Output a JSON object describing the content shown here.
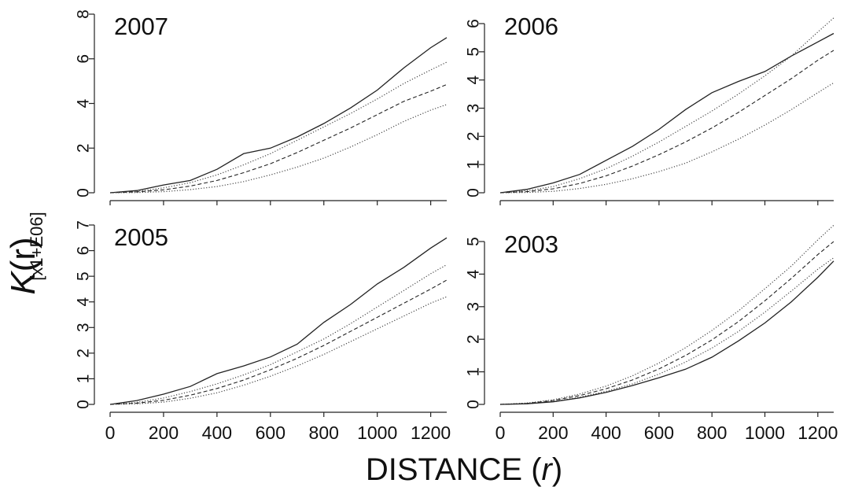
{
  "figure": {
    "ylabel_symbol": "K",
    "ylabel_arg": "(r)",
    "ylabel_unit": "[x1+E06]",
    "xlabel_text": "DISTANCE (",
    "xlabel_var": "r",
    "xlabel_close": ")"
  },
  "chart_data": [
    {
      "type": "line",
      "title": "2007",
      "xlim": [
        0,
        1260
      ],
      "ylim": [
        0,
        8
      ],
      "xticks": [
        0,
        200,
        400,
        600,
        800,
        1000,
        1200
      ],
      "yticks": [
        0,
        2,
        4,
        6,
        8
      ],
      "xtick_labels": [
        "0",
        "200",
        "400",
        "600",
        "800",
        "1000",
        "1200"
      ],
      "ytick_labels": [
        "0",
        "2",
        "4",
        "6",
        "8"
      ],
      "x": [
        0,
        100,
        200,
        300,
        400,
        500,
        600,
        700,
        800,
        900,
        1000,
        1100,
        1200,
        1260
      ],
      "series": [
        {
          "style": "solid",
          "values": [
            0,
            0.1,
            0.35,
            0.55,
            1.05,
            1.75,
            2.0,
            2.5,
            3.1,
            3.8,
            4.6,
            5.6,
            6.5,
            6.95
          ]
        },
        {
          "style": "dotted",
          "values": [
            0,
            0.06,
            0.22,
            0.45,
            0.8,
            1.25,
            1.75,
            2.35,
            2.95,
            3.55,
            4.2,
            4.9,
            5.5,
            5.85
          ]
        },
        {
          "style": "dashed",
          "values": [
            0,
            0.04,
            0.13,
            0.3,
            0.55,
            0.9,
            1.3,
            1.8,
            2.35,
            2.9,
            3.5,
            4.1,
            4.55,
            4.85
          ]
        },
        {
          "style": "dotted",
          "values": [
            0,
            0.01,
            0.05,
            0.14,
            0.28,
            0.5,
            0.8,
            1.15,
            1.55,
            2.05,
            2.6,
            3.2,
            3.7,
            3.95
          ]
        }
      ]
    },
    {
      "type": "line",
      "title": "2006",
      "xlim": [
        0,
        1260
      ],
      "ylim": [
        0,
        6
      ],
      "xticks": [
        0,
        200,
        400,
        600,
        800,
        1000,
        1200
      ],
      "yticks": [
        0,
        1,
        2,
        3,
        4,
        5,
        6
      ],
      "xtick_labels": [
        "0",
        "200",
        "400",
        "600",
        "800",
        "1000",
        "1200"
      ],
      "ytick_labels": [
        "0",
        "1",
        "2",
        "3",
        "4",
        "5",
        "6"
      ],
      "x": [
        0,
        100,
        200,
        300,
        400,
        500,
        600,
        700,
        800,
        900,
        1000,
        1100,
        1200,
        1260
      ],
      "series": [
        {
          "style": "solid",
          "values": [
            0,
            0.12,
            0.35,
            0.65,
            1.15,
            1.65,
            2.25,
            2.95,
            3.55,
            3.95,
            4.3,
            4.85,
            5.35,
            5.65
          ]
        },
        {
          "style": "dotted",
          "values": [
            0,
            0.07,
            0.22,
            0.5,
            0.85,
            1.3,
            1.8,
            2.35,
            2.9,
            3.5,
            4.15,
            4.85,
            5.7,
            6.2
          ]
        },
        {
          "style": "dashed",
          "values": [
            0,
            0.04,
            0.14,
            0.33,
            0.6,
            0.95,
            1.35,
            1.8,
            2.3,
            2.85,
            3.45,
            4.05,
            4.7,
            5.05
          ]
        },
        {
          "style": "dotted",
          "values": [
            0,
            0.01,
            0.05,
            0.15,
            0.3,
            0.5,
            0.75,
            1.05,
            1.45,
            1.9,
            2.4,
            2.95,
            3.55,
            3.9
          ]
        }
      ]
    },
    {
      "type": "line",
      "title": "2005",
      "xlim": [
        0,
        1260
      ],
      "ylim": [
        0,
        7
      ],
      "xticks": [
        0,
        200,
        400,
        600,
        800,
        1000,
        1200
      ],
      "yticks": [
        0,
        1,
        2,
        3,
        4,
        5,
        6,
        7
      ],
      "xtick_labels": [
        "0",
        "200",
        "400",
        "600",
        "800",
        "1000",
        "1200"
      ],
      "ytick_labels": [
        "0",
        "1",
        "2",
        "3",
        "4",
        "5",
        "6",
        "7"
      ],
      "x": [
        0,
        100,
        200,
        300,
        400,
        500,
        600,
        700,
        800,
        900,
        1000,
        1100,
        1200,
        1260
      ],
      "series": [
        {
          "style": "solid",
          "values": [
            0,
            0.15,
            0.4,
            0.7,
            1.2,
            1.5,
            1.85,
            2.35,
            3.2,
            3.9,
            4.7,
            5.35,
            6.1,
            6.5
          ]
        },
        {
          "style": "dotted",
          "values": [
            0,
            0.08,
            0.25,
            0.5,
            0.8,
            1.15,
            1.55,
            2.05,
            2.55,
            3.15,
            3.8,
            4.45,
            5.1,
            5.45
          ]
        },
        {
          "style": "dashed",
          "values": [
            0,
            0.05,
            0.16,
            0.36,
            0.62,
            0.95,
            1.35,
            1.8,
            2.3,
            2.85,
            3.4,
            3.95,
            4.5,
            4.85
          ]
        },
        {
          "style": "dotted",
          "values": [
            0,
            0.02,
            0.09,
            0.24,
            0.45,
            0.75,
            1.1,
            1.5,
            1.95,
            2.45,
            2.95,
            3.45,
            3.95,
            4.2
          ]
        }
      ]
    },
    {
      "type": "line",
      "title": "2003",
      "xlim": [
        0,
        1260
      ],
      "ylim": [
        0,
        5
      ],
      "xticks": [
        0,
        200,
        400,
        600,
        800,
        1000,
        1200
      ],
      "yticks": [
        0,
        1,
        2,
        3,
        4,
        5
      ],
      "xtick_labels": [
        "0",
        "200",
        "400",
        "600",
        "800",
        "1000",
        "1200"
      ],
      "ytick_labels": [
        "0",
        "1",
        "2",
        "3",
        "4",
        "5"
      ],
      "x": [
        0,
        100,
        200,
        300,
        400,
        500,
        600,
        700,
        800,
        900,
        1000,
        1100,
        1200,
        1260
      ],
      "series": [
        {
          "style": "dotted",
          "values": [
            0,
            0.04,
            0.14,
            0.32,
            0.56,
            0.88,
            1.27,
            1.74,
            2.27,
            2.87,
            3.55,
            4.25,
            5.05,
            5.5
          ]
        },
        {
          "style": "dashed",
          "values": [
            0,
            0.03,
            0.12,
            0.27,
            0.48,
            0.75,
            1.09,
            1.5,
            1.98,
            2.54,
            3.18,
            3.87,
            4.6,
            5.0
          ]
        },
        {
          "style": "dotted",
          "values": [
            0,
            0.02,
            0.09,
            0.22,
            0.4,
            0.63,
            0.93,
            1.3,
            1.73,
            2.24,
            2.83,
            3.48,
            4.15,
            4.5
          ]
        },
        {
          "style": "solid",
          "values": [
            0,
            0.02,
            0.08,
            0.2,
            0.37,
            0.58,
            0.82,
            1.08,
            1.45,
            1.95,
            2.5,
            3.15,
            3.9,
            4.4
          ]
        }
      ]
    }
  ]
}
